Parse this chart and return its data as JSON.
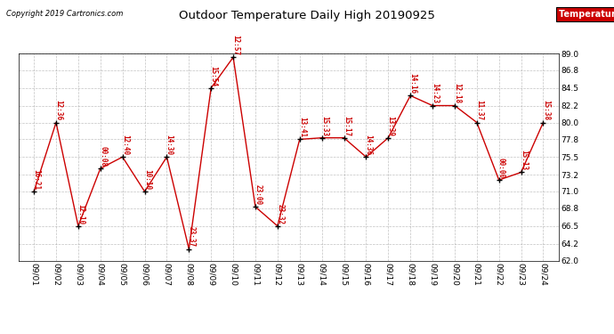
{
  "title": "Outdoor Temperature Daily High 20190925",
  "copyright": "Copyright 2019 Cartronics.com",
  "legend_label": "Temperature (°F)",
  "x_labels": [
    "09/01",
    "09/02",
    "09/03",
    "09/04",
    "09/05",
    "09/06",
    "09/07",
    "09/08",
    "09/09",
    "09/10",
    "09/11",
    "09/12",
    "09/13",
    "09/14",
    "09/15",
    "09/16",
    "09/17",
    "09/18",
    "09/19",
    "09/20",
    "09/21",
    "09/22",
    "09/23",
    "09/24"
  ],
  "y_values": [
    71.0,
    80.0,
    66.5,
    74.0,
    75.5,
    71.0,
    75.5,
    63.5,
    84.5,
    88.5,
    69.0,
    66.5,
    77.8,
    78.0,
    78.0,
    75.5,
    78.0,
    83.5,
    82.2,
    82.2,
    80.0,
    72.5,
    73.5,
    80.0
  ],
  "point_labels": [
    "16:21",
    "12:36",
    "12:10",
    "00:08",
    "12:40",
    "10:10",
    "14:30",
    "23:37",
    "15:54",
    "12:57",
    "23:00",
    "23:32",
    "13:41",
    "15:33",
    "15:17",
    "14:36",
    "13:39",
    "14:16",
    "14:23",
    "12:18",
    "11:37",
    "00:00",
    "15:13",
    "15:38"
  ],
  "ylim": [
    62.0,
    89.0
  ],
  "yticks": [
    62.0,
    64.2,
    66.5,
    68.8,
    71.0,
    73.2,
    75.5,
    77.8,
    80.0,
    82.2,
    84.5,
    86.8,
    89.0
  ],
  "line_color": "#cc0000",
  "marker_color": "#000000",
  "legend_bg": "#cc0000",
  "legend_text_color": "#ffffff",
  "title_color": "#000000",
  "copyright_color": "#000000",
  "label_color": "#cc0000",
  "grid_color": "#999999",
  "bg_color": "#ffffff",
  "figsize": [
    6.9,
    3.75
  ],
  "dpi": 100
}
